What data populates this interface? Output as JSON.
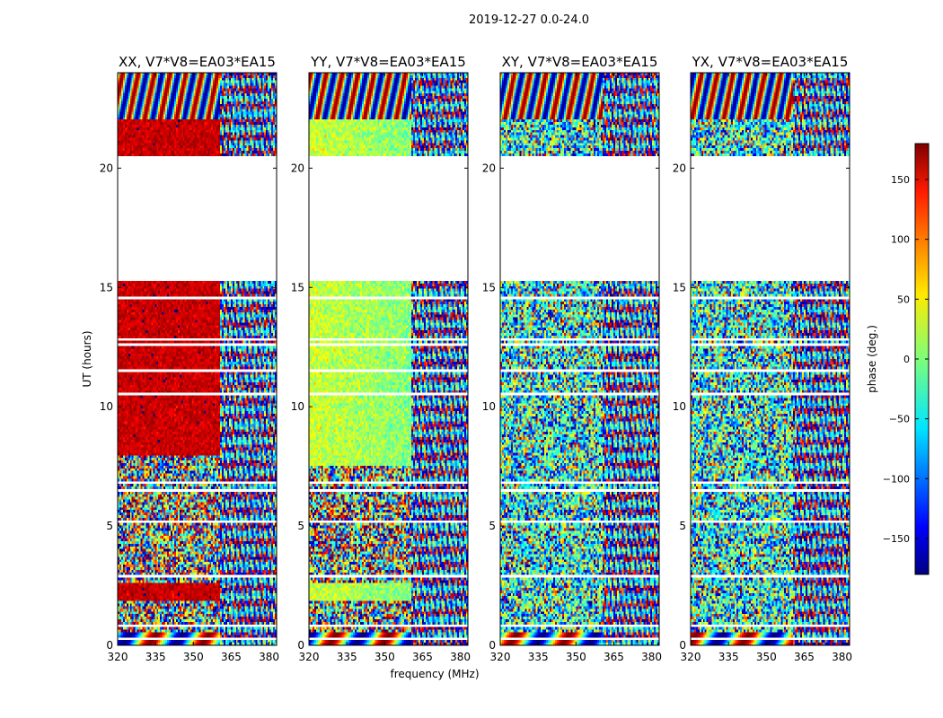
{
  "figure_title": "2019-12-27 0.0-24.0",
  "chart_data": {
    "type": "heatmap",
    "title": "2019-12-27 0.0-24.0",
    "xlabel": "frequency (MHz)",
    "ylabel": "UT (hours)",
    "xlim": [
      320,
      383
    ],
    "ylim": [
      0,
      24
    ],
    "x_ticks": [
      320,
      335,
      350,
      365,
      380
    ],
    "y_ticks": [
      0,
      5,
      10,
      15,
      20
    ],
    "data_gap_hours": [
      20.5,
      15.3
    ],
    "band_split_mhz": 360,
    "panels": [
      {
        "title": "XX, V7*V8=EA03*EA15",
        "dominant_phase_low_band_deg": 160,
        "dominant_phase_high_band_deg": "wrapped"
      },
      {
        "title": "YY, V7*V8=EA03*EA15",
        "dominant_phase_low_band_deg": 20,
        "dominant_phase_high_band_deg": -60
      },
      {
        "title": "XY, V7*V8=EA03*EA15",
        "dominant_phase_low_band_deg": "noise",
        "dominant_phase_high_band_deg": "noise"
      },
      {
        "title": "YX, V7*V8=EA03*EA15",
        "dominant_phase_low_band_deg": "noise",
        "dominant_phase_high_band_deg": "noise"
      }
    ],
    "colorbar": {
      "label": "phase (deg.)",
      "range": [
        -180,
        180
      ],
      "ticks": [
        -150,
        -100,
        -50,
        0,
        50,
        100,
        150
      ],
      "tick_labels": [
        "−150",
        "−100",
        "−50",
        "0",
        "50",
        "100",
        "150"
      ],
      "colormap": "jet"
    },
    "y_tick_labels": [
      "0",
      "5",
      "10",
      "15",
      "20"
    ],
    "x_tick_labels": [
      "320",
      "335",
      "350",
      "365",
      "380"
    ]
  }
}
